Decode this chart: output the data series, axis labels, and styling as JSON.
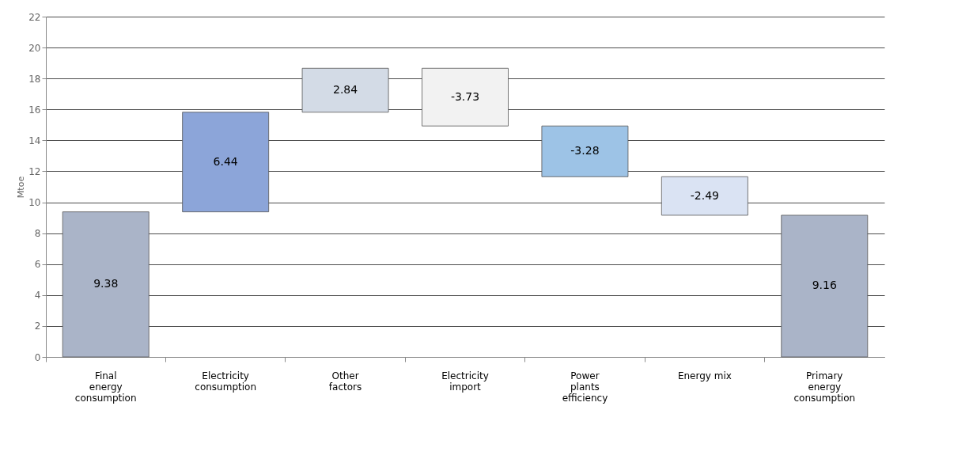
{
  "chart_data": {
    "type": "bar",
    "ylabel": "Mtoe",
    "categories": [
      "Final energy consumption",
      "Electricity consumption",
      "Other factors",
      "Electricity import",
      "Power plants efficiency",
      "Energy mix",
      "Primary energy consumption"
    ],
    "values": [
      9.38,
      6.44,
      2.84,
      -3.73,
      -3.28,
      -2.49,
      9.16
    ],
    "base": [
      0,
      9.38,
      15.82,
      18.66,
      14.93,
      11.65,
      0
    ],
    "colors": [
      "#aab4c8",
      "#8ca5d9",
      "#d3dbe6",
      "#f2f2f2",
      "#9dc3e6",
      "#dae3f3",
      "#aab4c8"
    ],
    "ylim": [
      0,
      22
    ],
    "yticks": [
      0,
      2,
      4,
      6,
      8,
      10,
      12,
      14,
      16,
      18,
      20,
      22
    ],
    "grid": "y",
    "data_labels": true,
    "legend": false
  }
}
